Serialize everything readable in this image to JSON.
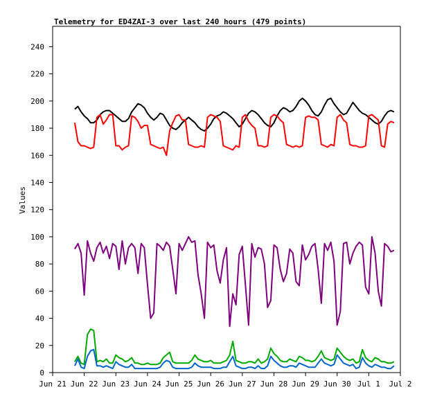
{
  "chart_data": {
    "type": "line",
    "title": "Telemetry for ED4ZAI-3 over last 240 hours (479 points)",
    "xlabel": "",
    "ylabel": "Values",
    "ylim": [
      0,
      255
    ],
    "yticks": [
      0,
      20,
      40,
      60,
      80,
      100,
      120,
      140,
      160,
      180,
      200,
      220,
      240
    ],
    "xlim": [
      0,
      11
    ],
    "xticks": [
      {
        "label": "Jun 21",
        "x": 0
      },
      {
        "label": "Jun 22",
        "x": 1
      },
      {
        "label": "Jun 23",
        "x": 2
      },
      {
        "label": "Jun 24",
        "x": 3
      },
      {
        "label": "Jun 25",
        "x": 4
      },
      {
        "label": "Jun 26",
        "x": 5
      },
      {
        "label": "Jun 27",
        "x": 6
      },
      {
        "label": "Jun 28",
        "x": 7
      },
      {
        "label": "Jun 29",
        "x": 8
      },
      {
        "label": "Jun 30",
        "x": 9
      },
      {
        "label": "Jul 1",
        "x": 10
      },
      {
        "label": "Jul 2",
        "x": 11
      }
    ],
    "grid": false,
    "series": [
      {
        "color": "#000000",
        "x": [
          0.7,
          0.8,
          0.9,
          1.0,
          1.1,
          1.2,
          1.3,
          1.4,
          1.5,
          1.6,
          1.7,
          1.8,
          1.9,
          2.0,
          2.1,
          2.2,
          2.3,
          2.4,
          2.5,
          2.6,
          2.7,
          2.8,
          2.9,
          3.0,
          3.1,
          3.2,
          3.3,
          3.4,
          3.5,
          3.6,
          3.7,
          3.8,
          3.9,
          4.0,
          4.1,
          4.2,
          4.3,
          4.4,
          4.5,
          4.6,
          4.7,
          4.8,
          4.9,
          5.0,
          5.1,
          5.2,
          5.3,
          5.4,
          5.5,
          5.6,
          5.7,
          5.8,
          5.9,
          6.0,
          6.1,
          6.2,
          6.3,
          6.4,
          6.5,
          6.6,
          6.7,
          6.8,
          6.9,
          7.0,
          7.1,
          7.2,
          7.3,
          7.4,
          7.5,
          7.6,
          7.7,
          7.8,
          7.9,
          8.0,
          8.1,
          8.2,
          8.3,
          8.4,
          8.5,
          8.6,
          8.7,
          8.8,
          8.9,
          9.0,
          9.1,
          9.2,
          9.3,
          9.4,
          9.5,
          9.6,
          9.7,
          9.8,
          9.9,
          10.0,
          10.1,
          10.2,
          10.3,
          10.4,
          10.5,
          10.6,
          10.7,
          10.8
        ],
        "y": [
          194,
          196,
          192,
          189,
          187,
          184,
          184,
          186,
          190,
          192,
          193,
          193,
          191,
          189,
          187,
          185,
          185,
          187,
          192,
          195,
          198,
          197,
          195,
          191,
          188,
          186,
          188,
          191,
          190,
          186,
          182,
          180,
          179,
          181,
          184,
          186,
          188,
          186,
          184,
          181,
          179,
          178,
          180,
          183,
          187,
          189,
          190,
          192,
          191,
          189,
          187,
          184,
          181,
          183,
          187,
          191,
          193,
          192,
          190,
          187,
          184,
          182,
          181,
          184,
          189,
          193,
          195,
          194,
          192,
          193,
          196,
          200,
          202,
          200,
          197,
          193,
          190,
          189,
          192,
          197,
          201,
          202,
          198,
          195,
          192,
          190,
          191,
          195,
          199,
          196,
          193,
          191,
          190,
          188,
          186,
          184,
          183,
          185,
          189,
          192,
          193,
          192
        ]
      },
      {
        "color": "#ff0000",
        "x": [
          0.7,
          0.8,
          0.9,
          1.0,
          1.1,
          1.2,
          1.3,
          1.4,
          1.5,
          1.6,
          1.7,
          1.8,
          1.9,
          2.0,
          2.1,
          2.2,
          2.3,
          2.4,
          2.5,
          2.6,
          2.7,
          2.8,
          2.9,
          3.0,
          3.1,
          3.2,
          3.3,
          3.4,
          3.5,
          3.6,
          3.7,
          3.8,
          3.9,
          4.0,
          4.1,
          4.2,
          4.3,
          4.4,
          4.5,
          4.6,
          4.7,
          4.8,
          4.9,
          5.0,
          5.1,
          5.2,
          5.3,
          5.4,
          5.5,
          5.6,
          5.7,
          5.8,
          5.9,
          6.0,
          6.1,
          6.2,
          6.3,
          6.4,
          6.5,
          6.6,
          6.7,
          6.8,
          6.9,
          7.0,
          7.1,
          7.2,
          7.3,
          7.4,
          7.5,
          7.6,
          7.7,
          7.8,
          7.9,
          8.0,
          8.1,
          8.2,
          8.3,
          8.4,
          8.5,
          8.6,
          8.7,
          8.8,
          8.9,
          9.0,
          9.1,
          9.2,
          9.3,
          9.4,
          9.5,
          9.6,
          9.7,
          9.8,
          9.9,
          10.0,
          10.1,
          10.2,
          10.3,
          10.4,
          10.5,
          10.6,
          10.7,
          10.8
        ],
        "y": [
          184,
          170,
          167,
          167,
          166,
          165,
          166,
          188,
          190,
          183,
          186,
          190,
          190,
          167,
          167,
          164,
          166,
          167,
          189,
          188,
          185,
          180,
          182,
          182,
          168,
          167,
          166,
          165,
          166,
          160,
          178,
          184,
          189,
          190,
          186,
          186,
          168,
          167,
          166,
          166,
          167,
          166,
          188,
          190,
          189,
          188,
          185,
          167,
          166,
          165,
          164,
          167,
          166,
          188,
          190,
          185,
          182,
          180,
          167,
          167,
          166,
          167,
          188,
          190,
          189,
          186,
          184,
          168,
          167,
          166,
          167,
          166,
          167,
          188,
          189,
          188,
          188,
          186,
          168,
          167,
          166,
          168,
          167,
          188,
          190,
          186,
          184,
          168,
          167,
          167,
          166,
          166,
          167,
          189,
          190,
          188,
          186,
          167,
          166,
          183,
          185,
          184
        ]
      },
      {
        "color": "#7f007f",
        "x": [
          0.7,
          0.8,
          0.9,
          1.0,
          1.1,
          1.2,
          1.3,
          1.4,
          1.5,
          1.6,
          1.7,
          1.8,
          1.9,
          2.0,
          2.1,
          2.2,
          2.3,
          2.4,
          2.5,
          2.6,
          2.7,
          2.8,
          2.9,
          3.0,
          3.1,
          3.2,
          3.3,
          3.4,
          3.5,
          3.6,
          3.7,
          3.8,
          3.9,
          4.0,
          4.1,
          4.2,
          4.3,
          4.4,
          4.5,
          4.6,
          4.7,
          4.8,
          4.9,
          5.0,
          5.1,
          5.2,
          5.3,
          5.4,
          5.5,
          5.6,
          5.7,
          5.8,
          5.9,
          6.0,
          6.1,
          6.2,
          6.3,
          6.4,
          6.5,
          6.6,
          6.7,
          6.8,
          6.9,
          7.0,
          7.1,
          7.2,
          7.3,
          7.4,
          7.5,
          7.6,
          7.7,
          7.8,
          7.9,
          8.0,
          8.1,
          8.2,
          8.3,
          8.4,
          8.5,
          8.6,
          8.7,
          8.8,
          8.9,
          9.0,
          9.1,
          9.2,
          9.3,
          9.4,
          9.5,
          9.6,
          9.7,
          9.8,
          9.9,
          10.0,
          10.1,
          10.2,
          10.3,
          10.4,
          10.5,
          10.6,
          10.7,
          10.8
        ],
        "y": [
          91,
          95,
          88,
          57,
          97,
          88,
          82,
          92,
          96,
          88,
          93,
          84,
          95,
          93,
          76,
          97,
          80,
          92,
          95,
          92,
          73,
          95,
          92,
          65,
          40,
          44,
          95,
          93,
          90,
          96,
          93,
          76,
          58,
          95,
          90,
          95,
          100,
          96,
          97,
          72,
          58,
          40,
          96,
          92,
          94,
          75,
          66,
          83,
          92,
          34,
          58,
          50,
          87,
          93,
          64,
          35,
          95,
          85,
          92,
          91,
          80,
          48,
          53,
          94,
          92,
          76,
          67,
          73,
          91,
          88,
          67,
          64,
          94,
          83,
          87,
          93,
          95,
          76,
          51,
          95,
          90,
          96,
          82,
          35,
          45,
          95,
          96,
          80,
          88,
          93,
          96,
          94,
          63,
          58,
          100,
          88,
          60,
          49,
          95,
          93,
          89,
          90
        ]
      },
      {
        "color": "#00aa00",
        "x": [
          0.7,
          0.8,
          0.9,
          1.0,
          1.1,
          1.2,
          1.3,
          1.4,
          1.5,
          1.6,
          1.7,
          1.8,
          1.9,
          2.0,
          2.1,
          2.2,
          2.3,
          2.4,
          2.5,
          2.6,
          2.7,
          2.8,
          2.9,
          3.0,
          3.1,
          3.2,
          3.3,
          3.4,
          3.5,
          3.6,
          3.7,
          3.8,
          3.9,
          4.0,
          4.1,
          4.2,
          4.3,
          4.4,
          4.5,
          4.6,
          4.7,
          4.8,
          4.9,
          5.0,
          5.1,
          5.2,
          5.3,
          5.4,
          5.5,
          5.6,
          5.7,
          5.8,
          5.9,
          6.0,
          6.1,
          6.2,
          6.3,
          6.4,
          6.5,
          6.6,
          6.7,
          6.8,
          6.9,
          7.0,
          7.1,
          7.2,
          7.3,
          7.4,
          7.5,
          7.6,
          7.7,
          7.8,
          7.9,
          8.0,
          8.1,
          8.2,
          8.3,
          8.4,
          8.5,
          8.6,
          8.7,
          8.8,
          8.9,
          9.0,
          9.1,
          9.2,
          9.3,
          9.4,
          9.5,
          9.6,
          9.7,
          9.8,
          9.9,
          10.0,
          10.1,
          10.2,
          10.3,
          10.4,
          10.5,
          10.6,
          10.7,
          10.8
        ],
        "y": [
          8,
          12,
          7,
          6,
          28,
          32,
          31,
          8,
          9,
          8,
          10,
          7,
          7,
          13,
          11,
          10,
          8,
          9,
          11,
          7,
          7,
          6,
          6,
          7,
          6,
          6,
          6,
          7,
          11,
          13,
          15,
          8,
          7,
          7,
          7,
          7,
          7,
          9,
          13,
          10,
          9,
          8,
          8,
          9,
          7,
          7,
          7,
          8,
          9,
          13,
          23,
          9,
          8,
          7,
          7,
          8,
          8,
          7,
          10,
          7,
          8,
          10,
          18,
          14,
          12,
          9,
          8,
          8,
          10,
          9,
          8,
          12,
          11,
          9,
          9,
          8,
          9,
          12,
          16,
          11,
          10,
          9,
          10,
          18,
          15,
          12,
          10,
          9,
          10,
          7,
          8,
          17,
          11,
          9,
          8,
          11,
          10,
          8,
          8,
          7,
          7,
          8
        ]
      },
      {
        "color": "#0066cc",
        "x": [
          0.7,
          0.8,
          0.9,
          1.0,
          1.1,
          1.2,
          1.3,
          1.4,
          1.5,
          1.6,
          1.7,
          1.8,
          1.9,
          2.0,
          2.1,
          2.2,
          2.3,
          2.4,
          2.5,
          2.6,
          2.7,
          2.8,
          2.9,
          3.0,
          3.1,
          3.2,
          3.3,
          3.4,
          3.5,
          3.6,
          3.7,
          3.8,
          3.9,
          4.0,
          4.1,
          4.2,
          4.3,
          4.4,
          4.5,
          4.6,
          4.7,
          4.8,
          4.9,
          5.0,
          5.1,
          5.2,
          5.3,
          5.4,
          5.5,
          5.6,
          5.7,
          5.8,
          5.9,
          6.0,
          6.1,
          6.2,
          6.3,
          6.4,
          6.5,
          6.6,
          6.7,
          6.8,
          6.9,
          7.0,
          7.1,
          7.2,
          7.3,
          7.4,
          7.5,
          7.6,
          7.7,
          7.8,
          7.9,
          8.0,
          8.1,
          8.2,
          8.3,
          8.4,
          8.5,
          8.6,
          8.7,
          8.8,
          8.9,
          9.0,
          9.1,
          9.2,
          9.3,
          9.4,
          9.5,
          9.6,
          9.7,
          9.8,
          9.9,
          10.0,
          10.1,
          10.2,
          10.3,
          10.4,
          10.5,
          10.6,
          10.7,
          10.8
        ],
        "y": [
          5,
          10,
          4,
          3,
          12,
          16,
          17,
          5,
          5,
          4,
          5,
          4,
          3,
          8,
          6,
          5,
          4,
          4,
          6,
          3,
          3,
          3,
          3,
          3,
          3,
          3,
          3,
          4,
          7,
          9,
          8,
          4,
          3,
          3,
          3,
          3,
          3,
          4,
          7,
          5,
          4,
          4,
          4,
          4,
          3,
          3,
          3,
          4,
          4,
          8,
          12,
          5,
          4,
          3,
          3,
          4,
          4,
          3,
          5,
          3,
          3,
          5,
          12,
          9,
          7,
          5,
          4,
          4,
          5,
          5,
          4,
          7,
          6,
          5,
          4,
          4,
          4,
          7,
          10,
          7,
          6,
          5,
          6,
          13,
          10,
          7,
          6,
          5,
          6,
          3,
          4,
          11,
          7,
          5,
          4,
          6,
          5,
          4,
          4,
          3,
          3,
          5
        ]
      }
    ]
  }
}
